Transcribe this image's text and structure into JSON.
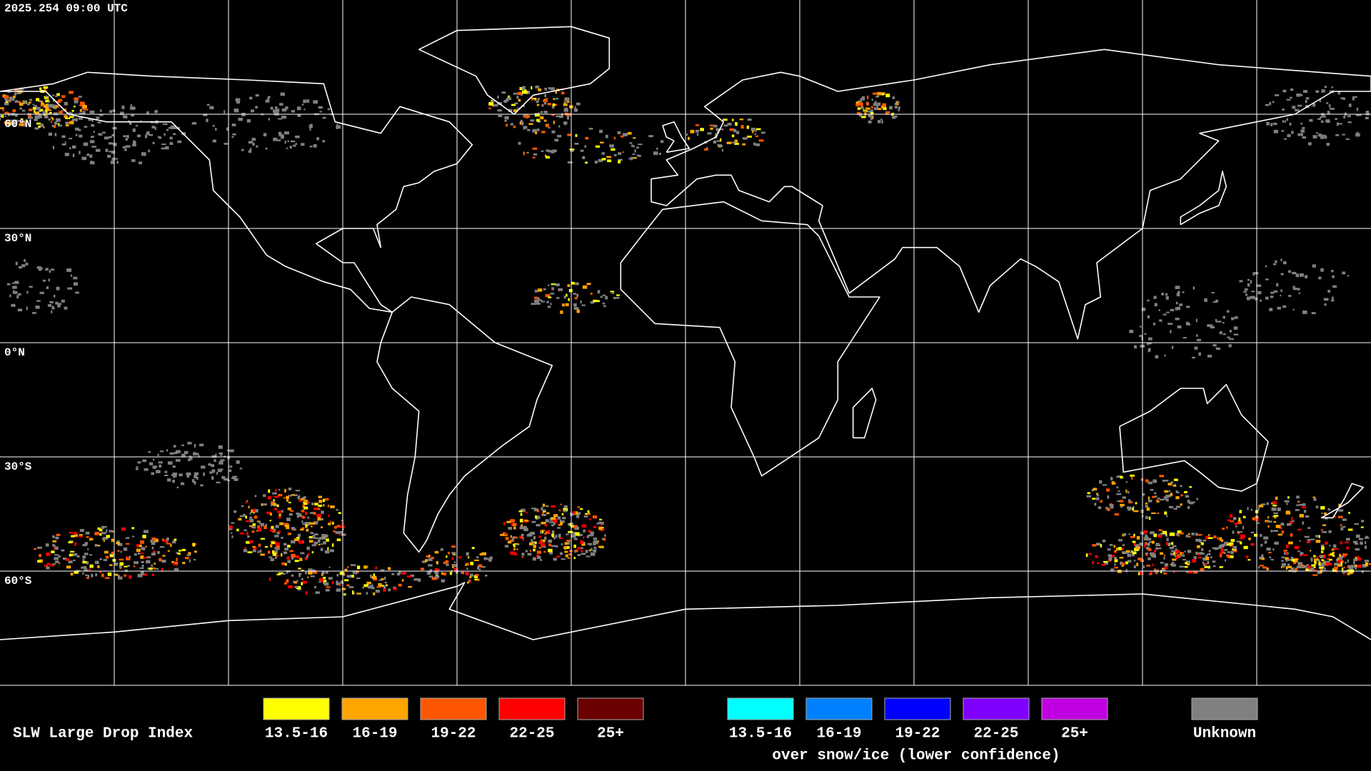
{
  "timestamp": "2025.254 09:00 UTC",
  "latitude_labels": [
    "60°N",
    "30°N",
    "0°N",
    "30°S",
    "60°S"
  ],
  "legend": {
    "title": "SLW Large Drop Index",
    "items": [
      {
        "label": "13.5-16",
        "color": "#ffff00"
      },
      {
        "label": "16-19",
        "color": "#ffa500"
      },
      {
        "label": "19-22",
        "color": "#ff5500"
      },
      {
        "label": "22-25",
        "color": "#ff0000"
      },
      {
        "label": "25+",
        "color": "#6a0000"
      }
    ],
    "snow_ice_items": [
      {
        "label": "13.5-16",
        "color": "#00ffff"
      },
      {
        "label": "16-19",
        "color": "#0080ff"
      },
      {
        "label": "19-22",
        "color": "#0000ff"
      },
      {
        "label": "22-25",
        "color": "#8000ff"
      },
      {
        "label": "25+",
        "color": "#c000e0"
      }
    ],
    "snow_ice_caption": "over snow/ice (lower confidence)",
    "unknown": {
      "label": "Unknown",
      "color": "#808080"
    }
  }
}
